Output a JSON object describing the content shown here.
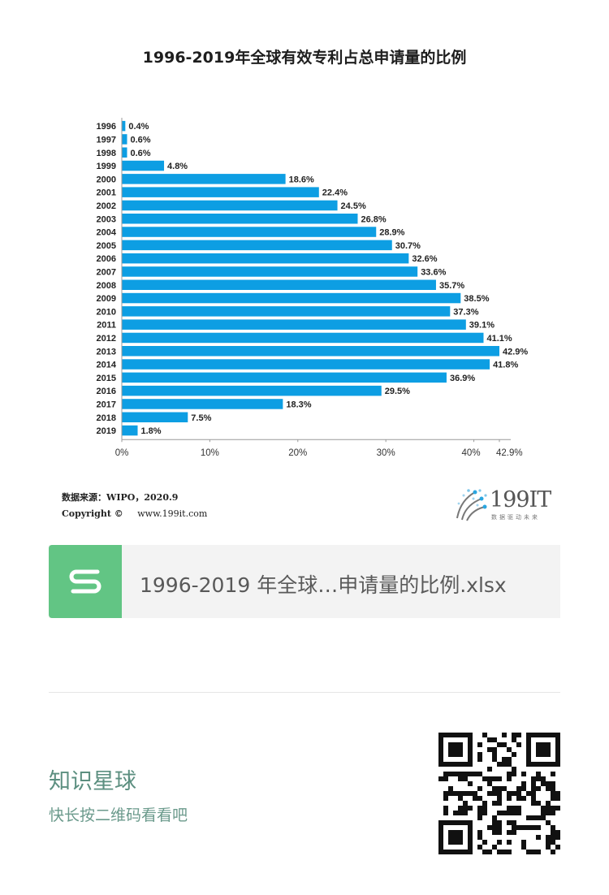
{
  "chart_data": {
    "type": "bar",
    "orientation": "horizontal",
    "title": "1996-2019年全球有效专利占总申请量的比例",
    "categories": [
      "1996",
      "1997",
      "1998",
      "1999",
      "2000",
      "2001",
      "2002",
      "2003",
      "2004",
      "2005",
      "2006",
      "2007",
      "2008",
      "2009",
      "2010",
      "2011",
      "2012",
      "2013",
      "2014",
      "2015",
      "2016",
      "2017",
      "2018",
      "2019"
    ],
    "values": [
      0.4,
      0.6,
      0.6,
      4.8,
      18.6,
      22.4,
      24.5,
      26.8,
      28.9,
      30.7,
      32.6,
      33.6,
      35.7,
      38.5,
      37.3,
      39.1,
      41.1,
      42.9,
      41.8,
      36.9,
      29.5,
      18.3,
      7.5,
      1.8
    ],
    "data_labels": [
      "0.4%",
      "0.6%",
      "0.6%",
      "4.8%",
      "18.6%",
      "22.4%",
      "24.5%",
      "26.8%",
      "28.9%",
      "30.7%",
      "32.6%",
      "33.6%",
      "35.7%",
      "38.5%",
      "37.3%",
      "39.1%",
      "41.1%",
      "42.9%",
      "41.8%",
      "36.9%",
      "29.5%",
      "18.3%",
      "7.5%",
      "1.8%"
    ],
    "x_ticks": [
      {
        "value": 0,
        "label": "0%"
      },
      {
        "value": 10,
        "label": "10%"
      },
      {
        "value": 20,
        "label": "20%"
      },
      {
        "value": 30,
        "label": "30%"
      },
      {
        "value": 40,
        "label": "40%"
      },
      {
        "value": 42.9,
        "label": "42.9%"
      }
    ],
    "xlim": [
      0,
      42.9
    ],
    "bar_color": "#0d9ee3",
    "grid": false
  },
  "source": "数据来源：WIPO，2020.9",
  "copyright_label": "Copyright ©",
  "copyright_url": "www.199it.com",
  "logo": {
    "name": "199IT",
    "tagline": "数据驱动未来"
  },
  "file": {
    "name": "1996-2019 年全球…申请量的比例.xlsx",
    "icon": "spreadsheet-s-icon",
    "color": "#62c584"
  },
  "planet": {
    "title": "知识星球",
    "subtitle": "快长按二维码看看吧",
    "color": "#5c8f80"
  }
}
